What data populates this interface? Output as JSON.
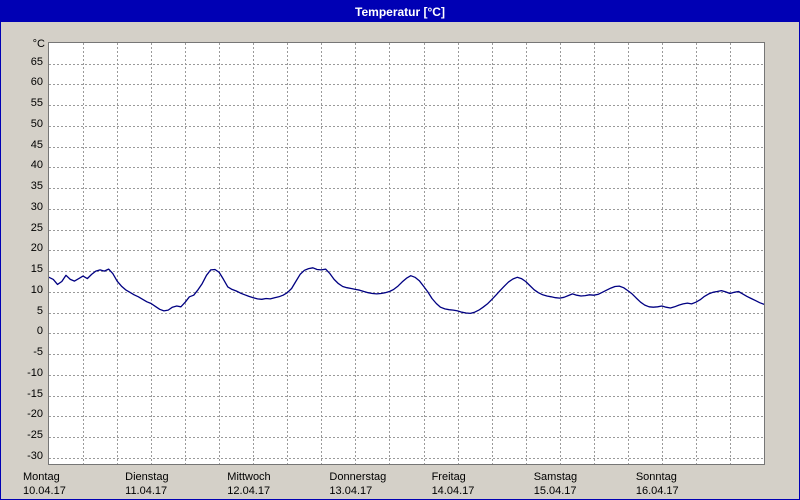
{
  "window": {
    "title": "Temperatur [°C]"
  },
  "colors": {
    "titlebar_bg": "#0000b4",
    "titlebar_text": "#ffffff",
    "panel_bg": "#d4d0c8",
    "plot_bg": "#ffffff",
    "grid": "#9a9a9a",
    "plot_border": "#767676",
    "line": "#000082",
    "axis_text": "#000000"
  },
  "chart_data": {
    "type": "line",
    "title": "Temperatur [°C]",
    "ylabel": "°C",
    "ylim": [
      -31.5,
      70
    ],
    "yticks": [
      65,
      60,
      55,
      50,
      45,
      40,
      35,
      30,
      25,
      20,
      15,
      10,
      5,
      0,
      -5,
      -10,
      -15,
      -20,
      -25,
      -30
    ],
    "x_unit": "hours",
    "xlim": [
      0,
      168
    ],
    "x_gridline_step_hours": 8,
    "grid": "dashed",
    "legend": "none",
    "days": [
      {
        "name": "Montag",
        "date": "10.04.17"
      },
      {
        "name": "Dienstag",
        "date": "11.04.17"
      },
      {
        "name": "Mittwoch",
        "date": "12.04.17"
      },
      {
        "name": "Donnerstag",
        "date": "13.04.17"
      },
      {
        "name": "Freitag",
        "date": "14.04.17"
      },
      {
        "name": "Samstag",
        "date": "15.04.17"
      },
      {
        "name": "Sonntag",
        "date": "16.04.17"
      }
    ],
    "series": [
      {
        "name": "Temperatur",
        "color": "#000082",
        "points": [
          [
            0,
            13.5
          ],
          [
            1,
            13.0
          ],
          [
            2,
            11.8
          ],
          [
            3,
            12.5
          ],
          [
            4,
            14.0
          ],
          [
            5,
            13.0
          ],
          [
            6,
            12.6
          ],
          [
            7,
            13.2
          ],
          [
            8,
            13.8
          ],
          [
            9,
            13.2
          ],
          [
            10,
            14.2
          ],
          [
            11,
            15.0
          ],
          [
            12,
            15.3
          ],
          [
            13,
            15.0
          ],
          [
            14,
            15.5
          ],
          [
            15,
            14.4
          ],
          [
            16,
            12.6
          ],
          [
            17,
            11.4
          ],
          [
            18,
            10.5
          ],
          [
            19,
            9.9
          ],
          [
            20,
            9.3
          ],
          [
            21,
            8.8
          ],
          [
            22,
            8.2
          ],
          [
            23,
            7.6
          ],
          [
            24,
            7.2
          ],
          [
            25,
            6.5
          ],
          [
            26,
            5.8
          ],
          [
            27,
            5.4
          ],
          [
            28,
            5.6
          ],
          [
            29,
            6.3
          ],
          [
            30,
            6.6
          ],
          [
            31,
            6.4
          ],
          [
            32,
            7.5
          ],
          [
            33,
            8.8
          ],
          [
            34,
            9.2
          ],
          [
            35,
            10.5
          ],
          [
            36,
            12.0
          ],
          [
            37,
            14.0
          ],
          [
            38,
            15.3
          ],
          [
            39,
            15.4
          ],
          [
            40,
            14.7
          ],
          [
            41,
            13.0
          ],
          [
            42,
            11.2
          ],
          [
            43,
            10.6
          ],
          [
            44,
            10.2
          ],
          [
            45,
            9.7
          ],
          [
            46,
            9.3
          ],
          [
            47,
            8.9
          ],
          [
            48,
            8.6
          ],
          [
            49,
            8.3
          ],
          [
            50,
            8.2
          ],
          [
            51,
            8.4
          ],
          [
            52,
            8.3
          ],
          [
            53,
            8.6
          ],
          [
            54,
            8.8
          ],
          [
            55,
            9.2
          ],
          [
            56,
            9.8
          ],
          [
            57,
            10.8
          ],
          [
            58,
            12.5
          ],
          [
            59,
            14.2
          ],
          [
            60,
            15.2
          ],
          [
            61,
            15.6
          ],
          [
            62,
            15.8
          ],
          [
            63,
            15.4
          ],
          [
            64,
            15.3
          ],
          [
            65,
            15.5
          ],
          [
            66,
            14.4
          ],
          [
            67,
            13.0
          ],
          [
            68,
            12.0
          ],
          [
            69,
            11.3
          ],
          [
            70,
            11.0
          ],
          [
            71,
            10.8
          ],
          [
            72,
            10.6
          ],
          [
            73,
            10.4
          ],
          [
            74,
            10.1
          ],
          [
            75,
            9.8
          ],
          [
            76,
            9.6
          ],
          [
            77,
            9.5
          ],
          [
            78,
            9.6
          ],
          [
            79,
            9.8
          ],
          [
            80,
            10.1
          ],
          [
            81,
            10.6
          ],
          [
            82,
            11.4
          ],
          [
            83,
            12.4
          ],
          [
            84,
            13.3
          ],
          [
            85,
            13.9
          ],
          [
            86,
            13.5
          ],
          [
            87,
            12.7
          ],
          [
            88,
            11.4
          ],
          [
            89,
            10.0
          ],
          [
            90,
            8.4
          ],
          [
            91,
            7.2
          ],
          [
            92,
            6.3
          ],
          [
            93,
            5.9
          ],
          [
            94,
            5.7
          ],
          [
            95,
            5.6
          ],
          [
            96,
            5.4
          ],
          [
            97,
            5.1
          ],
          [
            98,
            4.9
          ],
          [
            99,
            4.8
          ],
          [
            100,
            5.1
          ],
          [
            101,
            5.6
          ],
          [
            102,
            6.3
          ],
          [
            103,
            7.1
          ],
          [
            104,
            8.1
          ],
          [
            105,
            9.2
          ],
          [
            106,
            10.3
          ],
          [
            107,
            11.4
          ],
          [
            108,
            12.4
          ],
          [
            109,
            13.1
          ],
          [
            110,
            13.5
          ],
          [
            111,
            13.2
          ],
          [
            112,
            12.5
          ],
          [
            113,
            11.5
          ],
          [
            114,
            10.5
          ],
          [
            115,
            9.8
          ],
          [
            116,
            9.3
          ],
          [
            117,
            9.0
          ],
          [
            118,
            8.8
          ],
          [
            119,
            8.6
          ],
          [
            120,
            8.5
          ],
          [
            121,
            8.7
          ],
          [
            122,
            9.1
          ],
          [
            123,
            9.5
          ],
          [
            124,
            9.2
          ],
          [
            125,
            9.0
          ],
          [
            126,
            9.1
          ],
          [
            127,
            9.3
          ],
          [
            128,
            9.2
          ],
          [
            129,
            9.4
          ],
          [
            130,
            9.9
          ],
          [
            131,
            10.4
          ],
          [
            132,
            10.9
          ],
          [
            133,
            11.3
          ],
          [
            134,
            11.4
          ],
          [
            135,
            11.0
          ],
          [
            136,
            10.3
          ],
          [
            137,
            9.5
          ],
          [
            138,
            8.5
          ],
          [
            139,
            7.5
          ],
          [
            140,
            6.8
          ],
          [
            141,
            6.4
          ],
          [
            142,
            6.3
          ],
          [
            143,
            6.4
          ],
          [
            144,
            6.6
          ],
          [
            145,
            6.3
          ],
          [
            146,
            6.1
          ],
          [
            147,
            6.4
          ],
          [
            148,
            6.8
          ],
          [
            149,
            7.1
          ],
          [
            150,
            7.3
          ],
          [
            151,
            7.1
          ],
          [
            152,
            7.5
          ],
          [
            153,
            8.1
          ],
          [
            154,
            8.9
          ],
          [
            155,
            9.5
          ],
          [
            156,
            9.9
          ],
          [
            157,
            10.1
          ],
          [
            158,
            10.3
          ],
          [
            159,
            10.0
          ],
          [
            160,
            9.6
          ],
          [
            161,
            9.9
          ],
          [
            162,
            10.1
          ],
          [
            163,
            9.5
          ],
          [
            164,
            8.9
          ],
          [
            165,
            8.4
          ],
          [
            166,
            7.9
          ],
          [
            167,
            7.4
          ],
          [
            168,
            7.0
          ]
        ]
      }
    ]
  }
}
